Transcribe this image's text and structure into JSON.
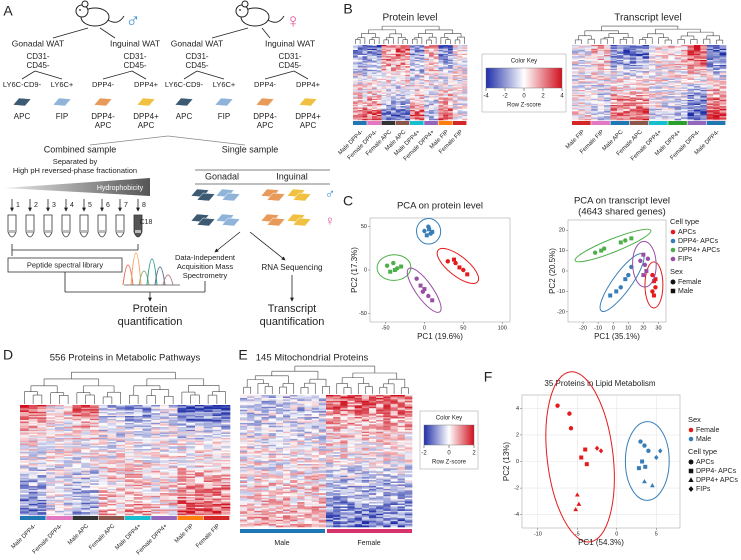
{
  "panel_a": {
    "letter": "A",
    "male": "♂",
    "female": "♀",
    "depots": [
      "Gonadal WAT",
      "Inguinal WAT",
      "Gonadal WAT",
      "Inguinal WAT"
    ],
    "lineage": [
      "CD31-",
      "CD45-"
    ],
    "markers_gonadal": [
      "LY6C-CD9-",
      "LY6C+"
    ],
    "markers_inguinal": [
      "DPP4-",
      "DPP4+"
    ],
    "cells_gonadal": [
      "APC",
      "FIP"
    ],
    "cells_inguinal": [
      [
        "DPP4-",
        "APC"
      ],
      [
        "DPP4+",
        "APC"
      ]
    ],
    "combined": "Combined sample",
    "single": "Single sample",
    "fractionation": [
      "Separated by",
      "High pH reversed-phase fractionation"
    ],
    "hydrophobicity": "Hydrophobicity",
    "fractions": [
      1,
      2,
      3,
      4,
      5,
      6,
      7,
      8
    ],
    "c18": "C18",
    "tissues": [
      "Gonadal",
      "Inguinal"
    ],
    "library": "Peptide spectral library",
    "dia": [
      "Data-Independent",
      "Acquisition Mass",
      "Spectrometry"
    ],
    "rnaseq": "RNA Sequencing",
    "protein_quant": [
      "Protein",
      "quantification"
    ],
    "transcript_quant": [
      "Transcript",
      "quantification"
    ]
  },
  "panel_b": {
    "letter": "B",
    "protein_title": "Protein level",
    "transcript_title": "Transcript level",
    "color_key": {
      "title": "Color Key",
      "ticks": [
        -4,
        -2,
        0,
        2,
        4
      ],
      "label": "Row Z-score"
    },
    "protein_columns": [
      "Male DPP4-",
      "Female DPP4-",
      "Female APC",
      "Male APC",
      "Male DPP4+",
      "Female DPP4+",
      "Male FIP",
      "Female FIP"
    ],
    "transcript_columns": [
      "Male FIP",
      "Female FIP",
      "Male APC",
      "Female APC",
      "Female DPP4+",
      "Male DPP4+",
      "Female DPP4-",
      "Male DPP4-"
    ]
  },
  "panel_c": {
    "letter": "C",
    "protein_pca": {
      "type": "scatter",
      "title": "PCA on protein level",
      "x_label": "PC1 (19.6%)",
      "y_label": "PC2 (17.3%)",
      "xlim": [
        -70,
        110
      ],
      "xticks": [
        -50,
        0,
        50,
        100
      ],
      "ylim": [
        -60,
        60
      ],
      "yticks": [
        -50,
        0,
        50
      ],
      "grid": false,
      "series": [
        {
          "name": "APCs",
          "color": "#e41a1c",
          "x": [
            30,
            38,
            40,
            45,
            50,
            55
          ],
          "y": [
            10,
            12,
            8,
            3,
            0,
            -5
          ],
          "markers": [
            "circle",
            "square",
            "circle",
            "square",
            "circle",
            "square"
          ]
        },
        {
          "name": "DPP4-  APCs",
          "color": "#377eb8",
          "x": [
            0,
            3,
            5,
            6,
            8,
            10
          ],
          "y": [
            45,
            40,
            50,
            47,
            42,
            44
          ],
          "markers": [
            "circle",
            "square",
            "circle",
            "square",
            "circle",
            "square"
          ]
        },
        {
          "name": "DPP4+  APCs",
          "color": "#4daf4a",
          "x": [
            -48,
            -44,
            -40,
            -38,
            -35,
            -30
          ],
          "y": [
            5,
            -2,
            8,
            0,
            2,
            4
          ],
          "markers": [
            "circle",
            "square",
            "circle",
            "square",
            "circle",
            "square"
          ]
        },
        {
          "name": "FIPs",
          "color": "#984ea3",
          "x": [
            -10,
            -5,
            -2,
            0,
            5,
            10
          ],
          "y": [
            -10,
            -18,
            -25,
            -22,
            -30,
            -35
          ],
          "markers": [
            "circle",
            "square",
            "circle",
            "square",
            "circle",
            "square"
          ]
        }
      ]
    },
    "transcript_pca": {
      "type": "scatter",
      "title": [
        "PCA on transcript level",
        "(4643 shared genes)"
      ],
      "x_label": "PC1 (35.1%)",
      "y_label": "PC2 (20.5%)",
      "xlim": [
        -30,
        35
      ],
      "xticks": [
        -20,
        -10,
        0,
        10,
        20,
        30
      ],
      "ylim": [
        -25,
        25
      ],
      "yticks": [
        -20,
        -10,
        0,
        10,
        20
      ],
      "grid": false,
      "series": [
        {
          "name": "APCs",
          "color": "#e41a1c",
          "x": [
            26,
            27,
            28,
            27,
            26,
            28
          ],
          "y": [
            -2,
            -5,
            -8,
            -12,
            -10,
            -4
          ],
          "markers": [
            "circle",
            "square",
            "circle",
            "square",
            "circle",
            "square"
          ]
        },
        {
          "name": "DPP4-  APCs",
          "color": "#377eb8",
          "x": [
            -2,
            2,
            5,
            8,
            10,
            12
          ],
          "y": [
            -12,
            -10,
            -8,
            -4,
            -2,
            2
          ],
          "markers": [
            "square",
            "square",
            "circle",
            "square",
            "circle",
            "circle"
          ]
        },
        {
          "name": "DPP4+  APCs",
          "color": "#4daf4a",
          "x": [
            -12,
            -8,
            -6,
            5,
            8,
            12
          ],
          "y": [
            9,
            10,
            11,
            14,
            15,
            16
          ],
          "markers": [
            "circle",
            "square",
            "circle",
            "square",
            "circle",
            "square"
          ]
        },
        {
          "name": "FIPs",
          "color": "#984ea3",
          "x": [
            18,
            20,
            21,
            22,
            23,
            20
          ],
          "y": [
            5,
            8,
            3,
            0,
            6,
            -2
          ],
          "markers": [
            "circle",
            "square",
            "circle",
            "square",
            "circle",
            "square"
          ]
        }
      ]
    },
    "legend": {
      "color_title": "Cell type",
      "shape_title": "Sex",
      "shapes": [
        {
          "name": "Female",
          "marker": "circle"
        },
        {
          "name": "Male",
          "marker": "square"
        }
      ]
    }
  },
  "panel_d": {
    "letter": "D",
    "title": "556 Proteins in Metabolic Pathways",
    "columns": [
      "Male DPP4-",
      "Female DPP4-",
      "Male APC",
      "Female APC",
      "Male DPP4+",
      "Female DPP4+",
      "Male FIP",
      "Female FIP"
    ]
  },
  "panel_e": {
    "letter": "E",
    "title": "145 Mitochondrial Proteins",
    "groups": [
      "Male",
      "Female"
    ],
    "color_key": {
      "title": "Color Key",
      "ticks": [
        -2,
        0,
        2
      ],
      "label": "Row Z-score"
    }
  },
  "panel_f": {
    "letter": "F",
    "pca": {
      "type": "scatter",
      "title": "35 Proteins in Lipid Metabolism",
      "x_label": "PC1 (54.3%)",
      "y_label": "PC2 (13%)",
      "xlim": [
        -12,
        8
      ],
      "xticks": [
        -10,
        -5,
        0,
        5
      ],
      "ylim": [
        -5,
        5
      ],
      "yticks": [
        -4,
        -2,
        0,
        2,
        4
      ],
      "grid": true,
      "series": [
        {
          "name": "Female",
          "color": "#e41a1c",
          "x": [
            -7.5,
            -6,
            -5.8,
            -4,
            -4.5,
            -3.8,
            -5,
            -4.8,
            -5.2,
            -2.5,
            -2
          ],
          "y": [
            4.2,
            3.6,
            2.5,
            0.9,
            0.3,
            -0.2,
            -2.5,
            -3.2,
            -3.6,
            1,
            0.8
          ],
          "markers": [
            "circle",
            "circle",
            "circle",
            "square",
            "square",
            "square",
            "triangle",
            "triangle",
            "triangle",
            "diamond",
            "diamond"
          ]
        },
        {
          "name": "Male",
          "color": "#377eb8",
          "x": [
            3,
            3.5,
            4,
            3.2,
            3.6,
            2.8,
            3.5,
            4.5,
            5,
            5.5
          ],
          "y": [
            1.5,
            1.2,
            0.8,
            0,
            -0.4,
            -0.5,
            -1.5,
            -1.8,
            0.3,
            0.8
          ],
          "markers": [
            "circle",
            "circle",
            "circle",
            "square",
            "square",
            "square",
            "triangle",
            "triangle",
            "diamond",
            "diamond"
          ]
        }
      ]
    },
    "legend": {
      "color_title": "Sex",
      "shape_title": "Cell type",
      "shapes": [
        {
          "name": "APCs",
          "marker": "circle"
        },
        {
          "name": "DPP4-  APCs",
          "marker": "square"
        },
        {
          "name": "DPP4+  APCs",
          "marker": "triangle"
        },
        {
          "name": "FIPs",
          "marker": "diamond"
        }
      ]
    }
  }
}
